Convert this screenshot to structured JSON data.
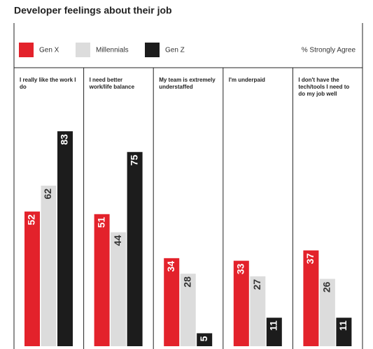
{
  "chart_data": {
    "type": "bar",
    "title": "Developer feelings about their job",
    "note": "% Strongly Agree",
    "categories": [
      "I really like the work I do",
      "I need better work/life balance",
      "My team is extremely understaffed",
      "I'm underpaid",
      "I don't have the tech/tools I need to do my job well"
    ],
    "series": [
      {
        "name": "Gen X",
        "color": "#e3222b",
        "values": [
          52,
          51,
          34,
          33,
          37
        ]
      },
      {
        "name": "Millennials",
        "color": "#dcdcdc",
        "values": [
          62,
          44,
          28,
          27,
          26
        ]
      },
      {
        "name": "Gen Z",
        "color": "#1c1c1c",
        "values": [
          83,
          75,
          5,
          11,
          11
        ]
      }
    ]
  }
}
